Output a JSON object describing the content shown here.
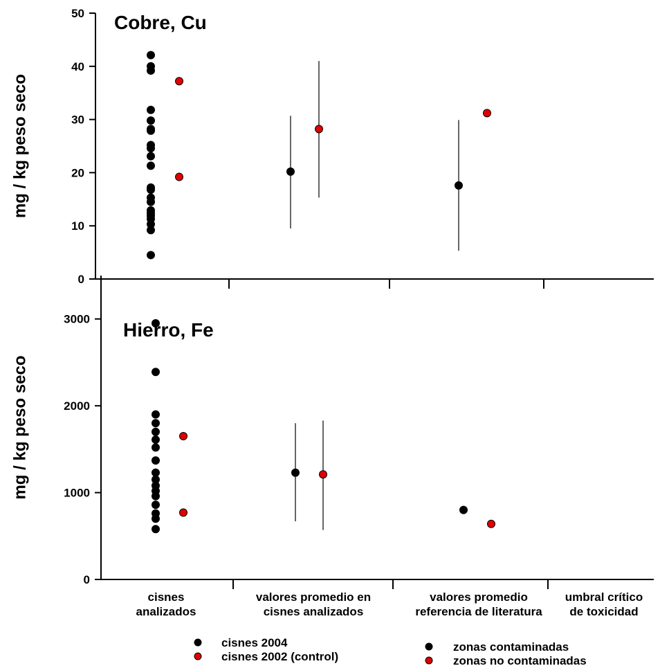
{
  "colors": {
    "series_2004": "#000000",
    "series_2002": "#e00000",
    "contaminated": "#000000",
    "non_contaminated": "#e00000"
  },
  "categories": [
    "cisnes analizados",
    "valores promedio en cisnes analizados",
    "valores promedio referencia de literatura",
    "umbral crítico de toxicidad"
  ],
  "category_lines": [
    [
      "cisnes",
      "analizados"
    ],
    [
      "valores promedio en",
      "cisnes analizados"
    ],
    [
      "valores promedio",
      "referencia de literatura"
    ],
    [
      "umbral crítico",
      "de toxicidad"
    ]
  ],
  "legend": {
    "left": [
      "cisnes 2004",
      "cisnes 2002 (control)"
    ],
    "right": [
      "zonas contaminadas",
      "zonas no contaminadas"
    ]
  },
  "chart_data": [
    {
      "type": "scatter",
      "title": "Cobre, Cu",
      "ylabel": "mg / kg peso seco",
      "ylim": [
        0,
        50
      ],
      "yticks": [
        0,
        10,
        20,
        30,
        40,
        50
      ],
      "individual": {
        "cisnes_2004": [
          42.1,
          40.0,
          39.2,
          31.8,
          29.8,
          28.2,
          27.9,
          25.2,
          24.6,
          23.1,
          21.3,
          17.2,
          16.8,
          15.3,
          14.5,
          12.9,
          12.4,
          11.9,
          11.3,
          10.3,
          9.2,
          4.5
        ],
        "cisnes_2002_control": [
          37.2,
          19.2
        ]
      },
      "means": [
        {
          "group": "cisnes_2004",
          "category": 1,
          "value": 20.2,
          "low": 9.5,
          "high": 30.7
        },
        {
          "group": "cisnes_2002_control",
          "category": 1,
          "value": 28.2,
          "low": 15.3,
          "high": 41.0
        },
        {
          "group": "zonas_contaminadas",
          "category": 2,
          "value": 17.6,
          "low": 5.3,
          "high": 29.9
        },
        {
          "group": "zonas_no_contaminadas",
          "category": 2,
          "value": 31.2,
          "low": null,
          "high": null
        }
      ],
      "grid": false
    },
    {
      "type": "scatter",
      "title": "Hierro, Fe",
      "ylabel": "mg / kg peso seco",
      "ylim": [
        0,
        3500
      ],
      "yticks": [
        0,
        1000,
        2000,
        3000
      ],
      "individual": {
        "cisnes_2004": [
          2950,
          2390,
          1900,
          1800,
          1700,
          1610,
          1520,
          1370,
          1230,
          1150,
          1080,
          1020,
          960,
          860,
          760,
          700,
          580
        ],
        "cisnes_2002_control": [
          1650,
          770
        ]
      },
      "means": [
        {
          "group": "cisnes_2004",
          "category": 1,
          "value": 1230,
          "low": 670,
          "high": 1800
        },
        {
          "group": "cisnes_2002_control",
          "category": 1,
          "value": 1210,
          "low": 570,
          "high": 1830
        },
        {
          "group": "zonas_contaminadas",
          "category": 2,
          "value": 800,
          "low": null,
          "high": null
        },
        {
          "group": "zonas_no_contaminadas",
          "category": 2,
          "value": 640,
          "low": null,
          "high": null
        }
      ],
      "grid": false
    }
  ]
}
